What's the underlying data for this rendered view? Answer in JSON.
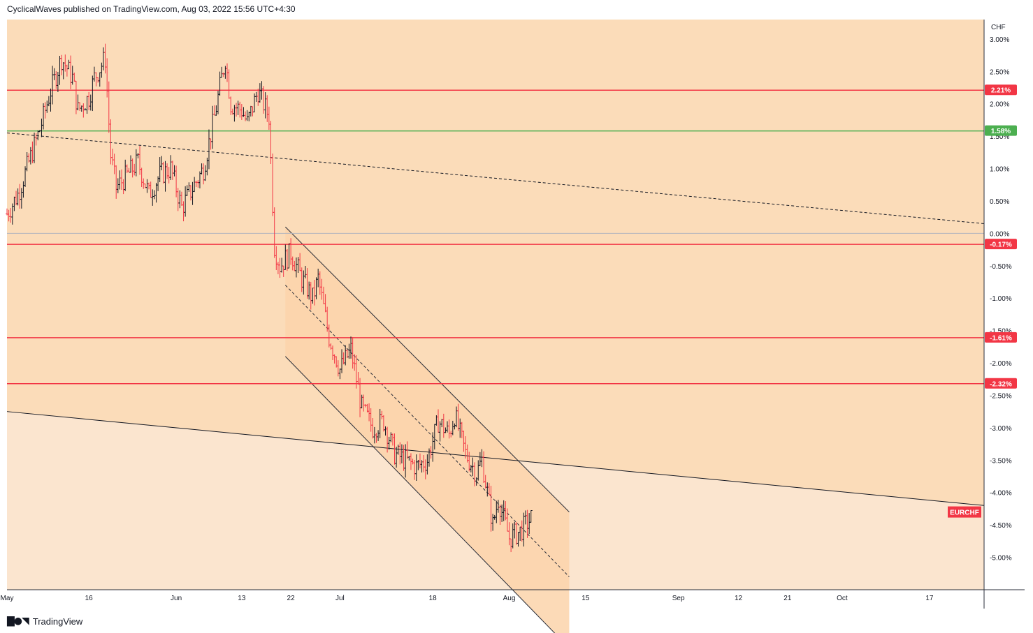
{
  "header": {
    "publisher": "CyclicalWaves published on TradingView.com, Aug 03, 2022 15:56 UTC+4:30"
  },
  "footer": {
    "brand": "TradingView",
    "logo_icon": "tradingview-logo-icon"
  },
  "colors": {
    "background_upper": "#fbdcb9",
    "background_lower": "#fbe5cf",
    "channel_fill": "#fbd3aa",
    "up_bar": "#131722",
    "down_bar": "#f23645",
    "resistance": "#f23645",
    "support": "#4caf50",
    "zero_line": "#b2b5be"
  },
  "chart_data": {
    "type": "ohlc",
    "symbol": "EURCHF",
    "unit": "CHF",
    "y_axis": {
      "scale": "percent",
      "ticks": [
        "3.00%",
        "2.50%",
        "2.00%",
        "1.50%",
        "1.00%",
        "0.50%",
        "0.00%",
        "-0.50%",
        "-1.00%",
        "-1.50%",
        "-2.00%",
        "-2.50%",
        "-3.00%",
        "-3.50%",
        "-4.00%",
        "-4.50%",
        "-5.00%"
      ],
      "tick_values": [
        3.0,
        2.5,
        2.0,
        1.5,
        1.0,
        0.5,
        0.0,
        -0.5,
        -1.0,
        -1.5,
        -2.0,
        -2.5,
        -3.0,
        -3.5,
        -4.0,
        -4.5,
        -5.0
      ],
      "range": [
        -5.5,
        3.3
      ]
    },
    "x_axis": {
      "ticks": [
        "May",
        "16",
        "Jun",
        "13",
        "22",
        "Jul",
        "18",
        "Aug",
        "15",
        "Sep",
        "12",
        "21",
        "Oct",
        "17"
      ],
      "tick_dates": [
        "2022-05-01",
        "2022-05-16",
        "2022-06-01",
        "2022-06-13",
        "2022-06-22",
        "2022-07-01",
        "2022-07-18",
        "2022-08-01",
        "2022-08-15",
        "2022-09-01",
        "2022-09-12",
        "2022-09-21",
        "2022-10-01",
        "2022-10-17"
      ],
      "range": [
        "2022-05-01",
        "2022-10-27"
      ]
    },
    "horizontal_levels": [
      {
        "value": 2.21,
        "label": "2.21%",
        "kind": "resistance"
      },
      {
        "value": 1.58,
        "label": "1.58%",
        "kind": "support"
      },
      {
        "value": -0.17,
        "label": "-0.17%",
        "kind": "resistance"
      },
      {
        "value": -1.61,
        "label": "-1.61%",
        "kind": "resistance"
      },
      {
        "value": -2.32,
        "label": "-2.32%",
        "kind": "resistance"
      }
    ],
    "last_price_label": "EURCHF",
    "last_price_value": -4.3,
    "zero_line": 0.0,
    "trend_lines": [
      {
        "style": "dashed",
        "from": [
          "2022-05-01",
          1.55
        ],
        "to": [
          "2022-10-27",
          0.15
        ]
      },
      {
        "style": "solid",
        "from": [
          "2022-05-01",
          -2.75
        ],
        "to": [
          "2022-10-27",
          -4.2
        ]
      }
    ],
    "channel": {
      "start_date": "2022-06-21",
      "end_date": "2022-08-12",
      "upper": [
        0.1,
        -4.3
      ],
      "mid": [
        -0.8,
        -5.3
      ],
      "lower": [
        -1.9,
        -6.4
      ]
    },
    "ohlc_anchors": [
      [
        "2022-05-01",
        0.3
      ],
      [
        "2022-05-03",
        0.6
      ],
      [
        "2022-05-05",
        1.1
      ],
      [
        "2022-05-07",
        1.6
      ],
      [
        "2022-05-09",
        2.2
      ],
      [
        "2022-05-11",
        2.7
      ],
      [
        "2022-05-13",
        2.4
      ],
      [
        "2022-05-14",
        1.9
      ],
      [
        "2022-05-16",
        2.1
      ],
      [
        "2022-05-17",
        2.4
      ],
      [
        "2022-05-19",
        2.7
      ],
      [
        "2022-05-20",
        1.2
      ],
      [
        "2022-05-21",
        0.7
      ],
      [
        "2022-05-23",
        0.9
      ],
      [
        "2022-05-25",
        1.1
      ],
      [
        "2022-05-27",
        0.6
      ],
      [
        "2022-05-29",
        0.9
      ],
      [
        "2022-05-31",
        1.0
      ],
      [
        "2022-06-02",
        0.4
      ],
      [
        "2022-06-04",
        0.7
      ],
      [
        "2022-06-06",
        1.0
      ],
      [
        "2022-06-08",
        1.8
      ],
      [
        "2022-06-10",
        2.7
      ],
      [
        "2022-06-11",
        2.0
      ],
      [
        "2022-06-13",
        1.9
      ],
      [
        "2022-06-14",
        1.7
      ],
      [
        "2022-06-16",
        2.2
      ],
      [
        "2022-06-18",
        1.8
      ],
      [
        "2022-06-19",
        -0.2
      ],
      [
        "2022-06-20",
        -0.5
      ],
      [
        "2022-06-22",
        -0.3
      ],
      [
        "2022-06-24",
        -0.7
      ],
      [
        "2022-06-26",
        -1.0
      ],
      [
        "2022-06-27",
        -0.7
      ],
      [
        "2022-06-29",
        -1.6
      ],
      [
        "2022-07-01",
        -2.1
      ],
      [
        "2022-07-03",
        -1.8
      ],
      [
        "2022-07-05",
        -2.7
      ],
      [
        "2022-07-07",
        -3.0
      ],
      [
        "2022-07-09",
        -2.9
      ],
      [
        "2022-07-11",
        -3.4
      ],
      [
        "2022-07-13",
        -3.5
      ],
      [
        "2022-07-15",
        -3.6
      ],
      [
        "2022-07-17",
        -3.5
      ],
      [
        "2022-07-19",
        -2.9
      ],
      [
        "2022-07-21",
        -3.1
      ],
      [
        "2022-07-22",
        -2.8
      ],
      [
        "2022-07-24",
        -3.4
      ],
      [
        "2022-07-26",
        -3.7
      ],
      [
        "2022-07-27",
        -3.5
      ],
      [
        "2022-07-29",
        -4.5
      ],
      [
        "2022-07-30",
        -4.1
      ],
      [
        "2022-08-01",
        -4.7
      ],
      [
        "2022-08-03",
        -4.6
      ],
      [
        "2022-08-05",
        -4.4
      ]
    ]
  }
}
